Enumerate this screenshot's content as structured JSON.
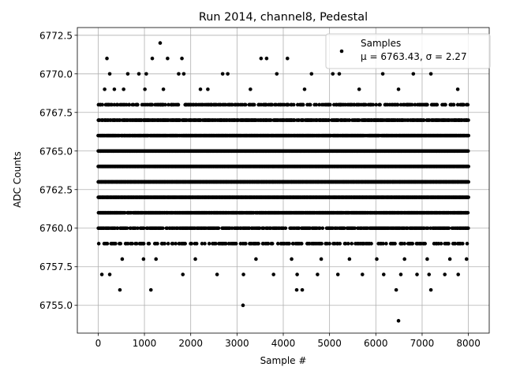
{
  "chart_data": {
    "type": "scatter",
    "title": "Run 2014, channel8, Pedestal",
    "xlabel": "Sample #",
    "ylabel": "ADC Counts",
    "xlim": [
      -450,
      8450
    ],
    "ylim": [
      6753.2,
      6773.0
    ],
    "xticks": [
      0,
      1000,
      2000,
      3000,
      4000,
      5000,
      6000,
      7000,
      8000
    ],
    "yticks": [
      6755.0,
      6757.5,
      6760.0,
      6762.5,
      6765.0,
      6767.5,
      6770.0,
      6772.5
    ],
    "xtick_labels": [
      "0",
      "1000",
      "2000",
      "3000",
      "4000",
      "5000",
      "6000",
      "7000",
      "8000"
    ],
    "ytick_labels": [
      "6755.0",
      "6757.5",
      "6760.0",
      "6762.5",
      "6765.0",
      "6767.5",
      "6770.0",
      "6772.5"
    ],
    "grid": true,
    "legend_position": "top-right",
    "marker_color": "#000000",
    "series": [
      {
        "name": "Samples",
        "legend_lines": [
          "Samples",
          "μ = 6763.43, σ = 2.27"
        ],
        "mean": 6763.43,
        "sigma": 2.27,
        "x_range": [
          0,
          8000
        ],
        "dense_levels": [
          6759,
          6760,
          6761,
          6762,
          6763,
          6764,
          6765,
          6766,
          6767,
          6768
        ],
        "points": [
          [
            1340,
            6772
          ],
          [
            190,
            6771
          ],
          [
            1170,
            6771
          ],
          [
            1500,
            6771
          ],
          [
            1810,
            6771
          ],
          [
            3520,
            6771
          ],
          [
            3640,
            6771
          ],
          [
            4090,
            6771
          ],
          [
            140,
            6769
          ],
          [
            350,
            6769
          ],
          [
            550,
            6769
          ],
          [
            1010,
            6769
          ],
          [
            1410,
            6769
          ],
          [
            2210,
            6769
          ],
          [
            2370,
            6769
          ],
          [
            3290,
            6769
          ],
          [
            4460,
            6769
          ],
          [
            5640,
            6769
          ],
          [
            6490,
            6769
          ],
          [
            7770,
            6769
          ],
          [
            250,
            6770
          ],
          [
            640,
            6770
          ],
          [
            880,
            6770
          ],
          [
            1040,
            6770
          ],
          [
            1740,
            6770
          ],
          [
            1850,
            6770
          ],
          [
            2690,
            6770
          ],
          [
            2800,
            6770
          ],
          [
            3860,
            6770
          ],
          [
            4610,
            6770
          ],
          [
            5070,
            6770
          ],
          [
            5210,
            6770
          ],
          [
            6150,
            6770
          ],
          [
            6810,
            6770
          ],
          [
            7190,
            6770
          ],
          [
            520,
            6758
          ],
          [
            980,
            6758
          ],
          [
            1250,
            6758
          ],
          [
            2100,
            6758
          ],
          [
            3410,
            6758
          ],
          [
            4180,
            6758
          ],
          [
            4820,
            6758
          ],
          [
            5430,
            6758
          ],
          [
            6020,
            6758
          ],
          [
            6620,
            6758
          ],
          [
            7110,
            6758
          ],
          [
            7600,
            6758
          ],
          [
            7960,
            6758
          ],
          [
            80,
            6757
          ],
          [
            250,
            6757
          ],
          [
            1830,
            6757
          ],
          [
            2570,
            6757
          ],
          [
            3140,
            6757
          ],
          [
            3790,
            6757
          ],
          [
            4300,
            6757
          ],
          [
            4740,
            6757
          ],
          [
            5180,
            6757
          ],
          [
            5710,
            6757
          ],
          [
            6170,
            6757
          ],
          [
            6540,
            6757
          ],
          [
            6890,
            6757
          ],
          [
            7150,
            6757
          ],
          [
            7490,
            6757
          ],
          [
            7780,
            6757
          ],
          [
            470,
            6756
          ],
          [
            1140,
            6756
          ],
          [
            4290,
            6756
          ],
          [
            4410,
            6756
          ],
          [
            6440,
            6756
          ],
          [
            7190,
            6756
          ],
          [
            3130,
            6755
          ],
          [
            6490,
            6754
          ]
        ]
      }
    ]
  }
}
